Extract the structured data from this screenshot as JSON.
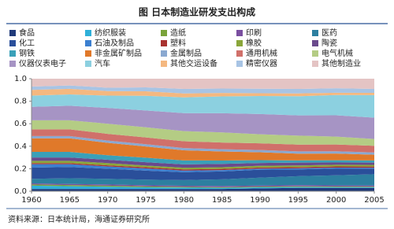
{
  "chart_data": {
    "type": "stacked_area",
    "title": "图    日本制造业研发支出构成",
    "source": "资料来源：日本统计局，海通证券研究所",
    "x": [
      1960,
      1965,
      1970,
      1975,
      1980,
      1985,
      1990,
      1995,
      2000,
      2005
    ],
    "xlim": [
      1960,
      2005
    ],
    "xticks": [
      1960,
      1965,
      1970,
      1975,
      1980,
      1985,
      1990,
      1995,
      2000,
      2005
    ],
    "ylim": [
      0,
      1
    ],
    "yticks": [
      {
        "value": 0,
        "label": "0.0"
      },
      {
        "value": 0.2,
        "label": "0.2"
      },
      {
        "value": 0.4,
        "label": "0.4"
      },
      {
        "value": 0.6,
        "label": "0.6"
      },
      {
        "value": 0.8,
        "label": "0.8"
      },
      {
        "value": 1,
        "label": "1.0"
      }
    ],
    "series": [
      {
        "name": "食品",
        "color": "#1f3a7a",
        "values": [
          0.02,
          0.02,
          0.02,
          0.02,
          0.02,
          0.02,
          0.025,
          0.03,
          0.03,
          0.03
        ]
      },
      {
        "name": "纺织服装",
        "color": "#2fb0d9",
        "values": [
          0.03,
          0.025,
          0.02,
          0.015,
          0.012,
          0.01,
          0.01,
          0.008,
          0.007,
          0.006
        ]
      },
      {
        "name": "造纸",
        "color": "#7aa33a",
        "values": [
          0.01,
          0.01,
          0.01,
          0.008,
          0.007,
          0.006,
          0.006,
          0.006,
          0.005,
          0.005
        ]
      },
      {
        "name": "印刷",
        "color": "#7a4fa0",
        "values": [
          0.01,
          0.01,
          0.01,
          0.01,
          0.01,
          0.01,
          0.01,
          0.01,
          0.01,
          0.01
        ]
      },
      {
        "name": "医药",
        "color": "#2d7fa0",
        "values": [
          0.04,
          0.05,
          0.05,
          0.05,
          0.05,
          0.06,
          0.07,
          0.08,
          0.09,
          0.1
        ]
      },
      {
        "name": "化工",
        "color": "#2a4f9a",
        "values": [
          0.1,
          0.1,
          0.09,
          0.08,
          0.07,
          0.07,
          0.07,
          0.06,
          0.06,
          0.05
        ]
      },
      {
        "name": "石油及制品",
        "color": "#3b7fd0",
        "values": [
          0.03,
          0.025,
          0.02,
          0.02,
          0.015,
          0.012,
          0.01,
          0.01,
          0.008,
          0.008
        ]
      },
      {
        "name": "塑料",
        "color": "#a8322f",
        "values": [
          0.01,
          0.01,
          0.01,
          0.01,
          0.01,
          0.01,
          0.01,
          0.01,
          0.01,
          0.01
        ]
      },
      {
        "name": "橡胶",
        "color": "#8aa63a",
        "values": [
          0.02,
          0.02,
          0.02,
          0.015,
          0.015,
          0.015,
          0.015,
          0.015,
          0.015,
          0.015
        ]
      },
      {
        "name": "陶瓷",
        "color": "#6a4a8c",
        "values": [
          0.03,
          0.03,
          0.03,
          0.03,
          0.03,
          0.03,
          0.025,
          0.025,
          0.02,
          0.02
        ]
      },
      {
        "name": "钢铁",
        "color": "#3aa0b8",
        "values": [
          0.05,
          0.05,
          0.04,
          0.04,
          0.035,
          0.03,
          0.025,
          0.02,
          0.02,
          0.02
        ]
      },
      {
        "name": "非金属矿制品",
        "color": "#e0792a",
        "values": [
          0.12,
          0.12,
          0.11,
          0.1,
          0.09,
          0.08,
          0.07,
          0.06,
          0.06,
          0.05
        ]
      },
      {
        "name": "金属制品",
        "color": "#8aa8d0",
        "values": [
          0.02,
          0.02,
          0.02,
          0.02,
          0.02,
          0.02,
          0.02,
          0.02,
          0.02,
          0.02
        ]
      },
      {
        "name": "通用机械",
        "color": "#d0706a",
        "values": [
          0.06,
          0.06,
          0.06,
          0.06,
          0.06,
          0.06,
          0.06,
          0.06,
          0.06,
          0.06
        ]
      },
      {
        "name": "电气机械",
        "color": "#b4cc84",
        "values": [
          0.08,
          0.08,
          0.09,
          0.09,
          0.09,
          0.09,
          0.08,
          0.08,
          0.07,
          0.06
        ]
      },
      {
        "name": "仪器仪表电子",
        "color": "#a694c4",
        "values": [
          0.12,
          0.13,
          0.14,
          0.15,
          0.16,
          0.17,
          0.18,
          0.18,
          0.19,
          0.19
        ]
      },
      {
        "name": "汽车",
        "color": "#8cd0e0",
        "values": [
          0.1,
          0.1,
          0.11,
          0.13,
          0.14,
          0.15,
          0.16,
          0.17,
          0.18,
          0.2
        ]
      },
      {
        "name": "其他交运设备",
        "color": "#f4b880",
        "values": [
          0.05,
          0.05,
          0.04,
          0.04,
          0.035,
          0.03,
          0.025,
          0.025,
          0.02,
          0.02
        ]
      },
      {
        "name": "精密仪器",
        "color": "#a8c4e4",
        "values": [
          0.03,
          0.03,
          0.03,
          0.035,
          0.04,
          0.04,
          0.04,
          0.04,
          0.04,
          0.035
        ]
      },
      {
        "name": "其他制造业",
        "color": "#e4c4c4",
        "values": [
          0.07,
          0.06,
          0.08,
          0.077,
          0.091,
          0.087,
          0.089,
          0.091,
          0.085,
          0.091
        ]
      }
    ]
  }
}
